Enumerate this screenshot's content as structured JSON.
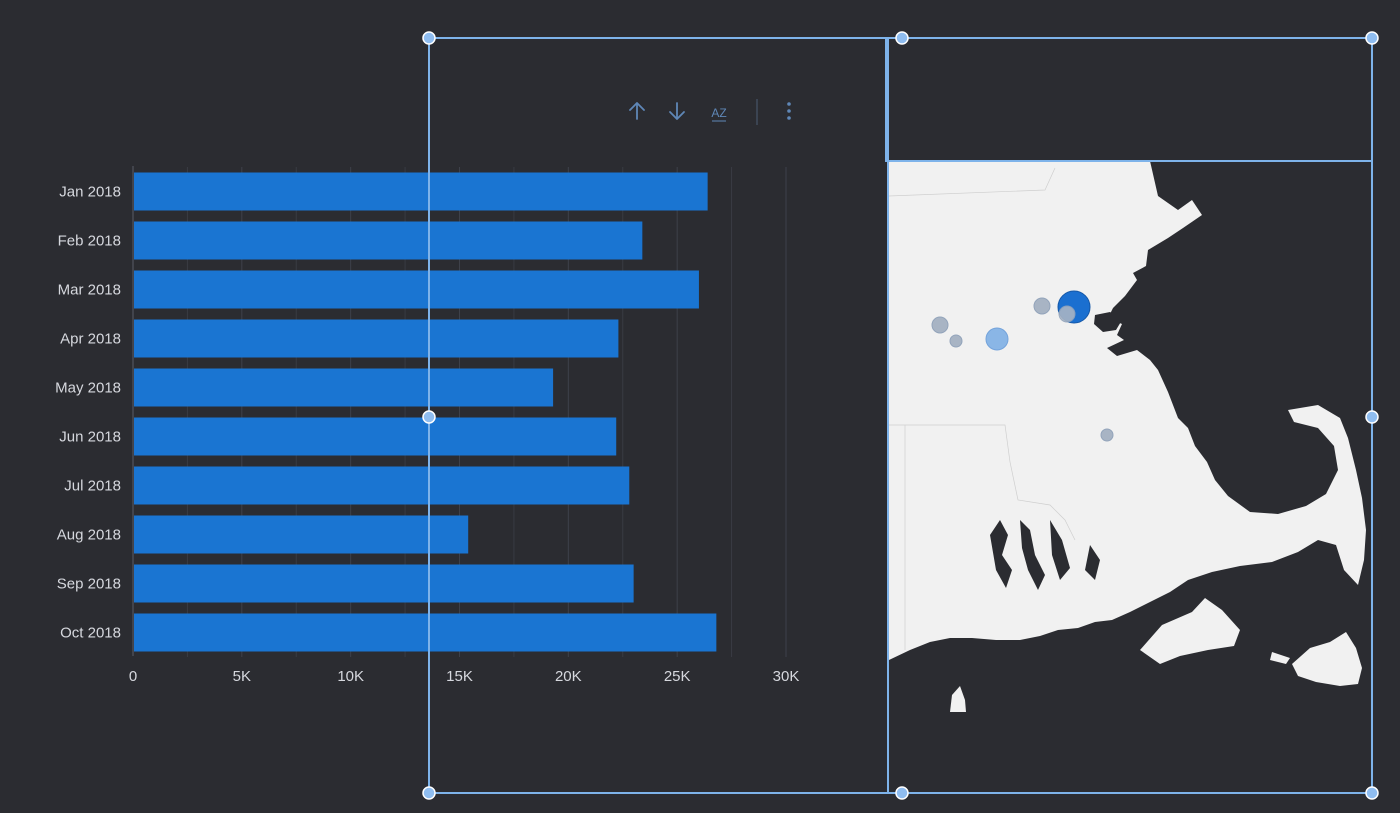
{
  "toolbar": {
    "icons": [
      "sort-ascending-icon",
      "sort-descending-icon",
      "sort-alphabetical-icon",
      "more-options-icon"
    ],
    "sort_alpha_glyph": "AZ"
  },
  "colors": {
    "background": "#2b2c31",
    "bar": "#1a75d2",
    "selection": "#7eb3ea",
    "handle_fill": "#8fbdf0",
    "toolbar_icon": "#5f87b7",
    "land": "#f1f1f1",
    "bubble_light": "#8ab6e6",
    "bubble_gray": "#a8b4c4",
    "bubble_dark": "#1a6fd0"
  },
  "chart_data": {
    "type": "bar",
    "orientation": "horizontal",
    "categories": [
      "Jan 2018",
      "Feb 2018",
      "Mar 2018",
      "Apr 2018",
      "May 2018",
      "Jun 2018",
      "Jul 2018",
      "Aug 2018",
      "Sep 2018",
      "Oct 2018"
    ],
    "values": [
      26400,
      23400,
      26000,
      22300,
      19300,
      22200,
      22800,
      15400,
      23000,
      26800
    ],
    "xlim": [
      0,
      30000
    ],
    "x_ticks": [
      0,
      5000,
      10000,
      15000,
      20000,
      25000,
      30000
    ],
    "x_tick_labels": [
      "0",
      "5K",
      "10K",
      "15K",
      "20K",
      "25K",
      "30K"
    ],
    "grid": "vertical",
    "title": "",
    "xlabel": "",
    "ylabel": ""
  },
  "map": {
    "region": "Massachusetts",
    "bubbles": [
      {
        "name": "bubble-1",
        "size": "medium",
        "tone": "gray"
      },
      {
        "name": "bubble-2",
        "size": "small",
        "tone": "gray"
      },
      {
        "name": "bubble-3",
        "size": "large",
        "tone": "light"
      },
      {
        "name": "bubble-4",
        "size": "small",
        "tone": "gray"
      },
      {
        "name": "bubble-5",
        "size": "xlarge",
        "tone": "dark"
      },
      {
        "name": "bubble-6",
        "size": "small",
        "tone": "gray"
      },
      {
        "name": "bubble-7",
        "size": "small",
        "tone": "gray"
      }
    ]
  }
}
